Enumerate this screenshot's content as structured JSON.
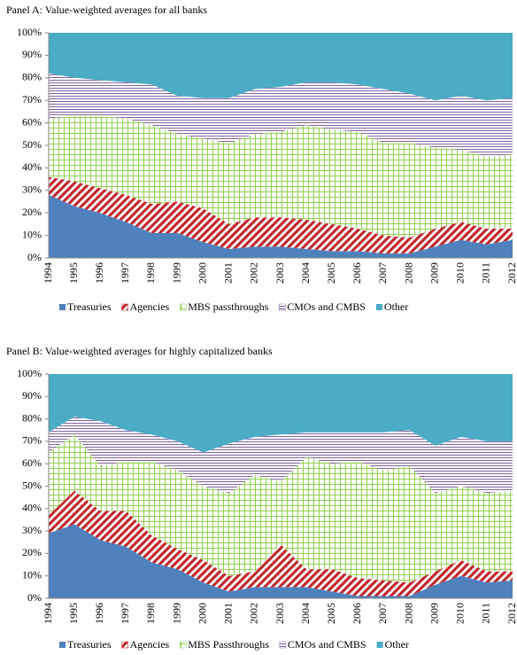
{
  "chart_data": [
    {
      "type": "area",
      "stacked": true,
      "title": "Panel A: Value-weighted averages for all banks",
      "categories": [
        "1994",
        "1995",
        "1996",
        "1997",
        "1998",
        "1999",
        "2000",
        "2001",
        "2002",
        "2003",
        "2004",
        "2005",
        "2006",
        "2007",
        "2008",
        "2009",
        "2010",
        "2011",
        "2012"
      ],
      "series": [
        {
          "name": "Treasuries",
          "color": "#4f81bd",
          "values": [
            28,
            23,
            20,
            16,
            11,
            11,
            7,
            4,
            5,
            5,
            4,
            3,
            3,
            2,
            2,
            5,
            8,
            6,
            8
          ]
        },
        {
          "name": "Agencies",
          "color": "#c0282d",
          "values": [
            8,
            11,
            11,
            12,
            13,
            14,
            15,
            11,
            13,
            13,
            13,
            12,
            10,
            8,
            7,
            8,
            8,
            7,
            5
          ]
        },
        {
          "name": "MBS passthroughs",
          "color": "#92d050",
          "values": [
            26,
            29,
            32,
            34,
            35,
            30,
            31,
            36,
            37,
            38,
            42,
            42,
            43,
            41,
            42,
            36,
            32,
            32,
            33
          ]
        },
        {
          "name": "CMOs and CMBS",
          "color": "#8064a2",
          "values": [
            20,
            17,
            16,
            16,
            18,
            17,
            18,
            20,
            20,
            20,
            19,
            21,
            21,
            24,
            22,
            21,
            24,
            25,
            25
          ]
        },
        {
          "name": "Other",
          "color": "#4bacc6",
          "values": [
            18,
            20,
            21,
            22,
            23,
            28,
            29,
            29,
            25,
            24,
            22,
            22,
            23,
            25,
            27,
            30,
            28,
            30,
            29
          ]
        }
      ],
      "ylim": [
        0,
        100
      ],
      "yticks": [
        {
          "value": 0,
          "label": "0%"
        },
        {
          "value": 10,
          "label": "10%"
        },
        {
          "value": 20,
          "label": "20%"
        },
        {
          "value": 30,
          "label": "30%"
        },
        {
          "value": 40,
          "label": "40%"
        },
        {
          "value": 50,
          "label": "50%"
        },
        {
          "value": 60,
          "label": "60%"
        },
        {
          "value": 70,
          "label": "70%"
        },
        {
          "value": 80,
          "label": "80%"
        },
        {
          "value": 90,
          "label": "90%"
        },
        {
          "value": 100,
          "label": "100%"
        }
      ],
      "legend": "bottom"
    },
    {
      "type": "area",
      "stacked": true,
      "title": "Panel B: Value-weighted averages for highly capitalized banks",
      "categories": [
        "1994",
        "1995",
        "1996",
        "1997",
        "1998",
        "1999",
        "2000",
        "2001",
        "2002",
        "2003",
        "2004",
        "2005",
        "2006",
        "2007",
        "2008",
        "2009",
        "2010",
        "2011",
        "2012"
      ],
      "series": [
        {
          "name": "Treasuries",
          "color": "#4f81bd",
          "values": [
            29,
            33,
            26,
            23,
            16,
            13,
            7,
            3,
            5,
            5,
            5,
            3,
            1,
            1,
            1,
            6,
            10,
            7,
            8
          ]
        },
        {
          "name": "Agencies",
          "color": "#c0282d",
          "values": [
            8,
            15,
            13,
            16,
            12,
            9,
            10,
            7,
            7,
            19,
            8,
            10,
            8,
            7,
            6,
            6,
            7,
            5,
            4
          ]
        },
        {
          "name": "MBS Passthroughs",
          "color": "#92d050",
          "values": [
            28,
            25,
            20,
            22,
            33,
            35,
            33,
            37,
            43,
            28,
            50,
            47,
            52,
            49,
            52,
            35,
            33,
            35,
            36
          ]
        },
        {
          "name": "CMOs and CMBS",
          "color": "#8064a2",
          "values": [
            9,
            8,
            20,
            14,
            12,
            13,
            15,
            22,
            17,
            21,
            11,
            14,
            13,
            17,
            16,
            21,
            22,
            23,
            22
          ]
        },
        {
          "name": "Other",
          "color": "#4bacc6",
          "values": [
            26,
            19,
            21,
            25,
            27,
            30,
            35,
            31,
            28,
            27,
            26,
            26,
            26,
            26,
            25,
            32,
            28,
            30,
            30
          ]
        }
      ],
      "ylim": [
        0,
        100
      ],
      "yticks": [
        {
          "value": 0,
          "label": "0%"
        },
        {
          "value": 10,
          "label": "10%"
        },
        {
          "value": 20,
          "label": "20%"
        },
        {
          "value": 30,
          "label": "30%"
        },
        {
          "value": 40,
          "label": "40%"
        },
        {
          "value": 50,
          "label": "50%"
        },
        {
          "value": 60,
          "label": "60%"
        },
        {
          "value": 70,
          "label": "70%"
        },
        {
          "value": 80,
          "label": "80%"
        },
        {
          "value": 90,
          "label": "90%"
        },
        {
          "value": 100,
          "label": "100%"
        }
      ],
      "legend": "bottom"
    }
  ]
}
